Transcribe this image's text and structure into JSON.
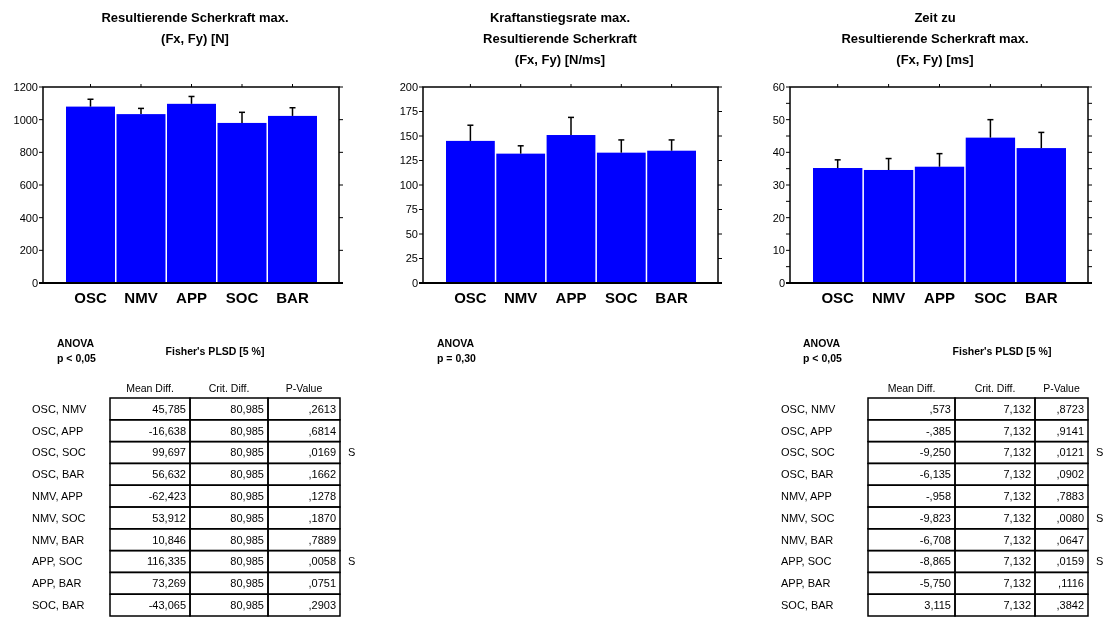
{
  "chart_data": [
    {
      "type": "bar",
      "title": "Resultierende Scherkraft max.\n(Fx, Fy) [N]",
      "categories": [
        "OSC",
        "NMV",
        "APP",
        "SOC",
        "BAR"
      ],
      "values": [
        1080,
        1034,
        1097,
        980,
        1023
      ],
      "errors": [
        45,
        35,
        45,
        65,
        50
      ],
      "color": "#0000ff",
      "ylim": [
        0,
        1200
      ],
      "yticks": [
        0,
        200,
        400,
        600,
        800,
        1000,
        1200
      ]
    },
    {
      "type": "bar",
      "title": "Kraftanstiegsrate max.\nResultierende Scherkraft\n(Fx, Fy) [N/ms]",
      "categories": [
        "OSC",
        "NMV",
        "APP",
        "SOC",
        "BAR"
      ],
      "values": [
        145,
        132,
        151,
        133,
        135
      ],
      "errors": [
        16,
        8,
        18,
        13,
        11
      ],
      "color": "#0000ff",
      "ylim": [
        0,
        200
      ],
      "yticks": [
        0,
        25,
        50,
        75,
        100,
        125,
        150,
        175,
        200
      ],
      "annotations": [
        "ANOVA",
        "p = 0,30"
      ]
    },
    {
      "type": "bar",
      "title": "Zeit zu\nResultierende Scherkraft max.\n(Fx, Fy) [ms]",
      "categories": [
        "OSC",
        "NMV",
        "APP",
        "SOC",
        "BAR"
      ],
      "values": [
        35.2,
        34.6,
        35.6,
        44.5,
        41.3
      ],
      "errors": [
        2.5,
        3.5,
        4,
        5.5,
        4.8
      ],
      "color": "#0000ff",
      "ylim": [
        0,
        60
      ],
      "yticks": [
        0,
        {
          "value": 5,
          "label": null
        },
        10,
        {
          "value": 15,
          "label": null
        },
        20,
        {
          "value": 25,
          "label": null
        },
        30,
        {
          "value": 35,
          "label": null
        },
        40,
        {
          "value": 45,
          "label": null
        },
        50,
        {
          "value": 55,
          "label": null
        },
        60
      ]
    },
    {
      "type": "other",
      "title": "Fisher's PLSD [5 %]",
      "categories": [
        "Mean Diff.",
        "Crit. Diff.",
        "P-Value"
      ],
      "y_categories": [
        "OSC, NMV",
        "OSC, APP",
        "OSC, SOC",
        "OSC, BAR",
        "NMV, APP",
        "NMV, SOC",
        "NMV, BAR",
        "APP, SOC",
        "APP, BAR",
        "SOC, BAR"
      ],
      "annotations": [
        "ANOVA",
        "p < 0,05",
        {
          "text": "45,785",
          "x": "Mean Diff.",
          "y": "OSC, NMV"
        },
        {
          "text": "80,985",
          "x": "Crit. Diff.",
          "y": "OSC, NMV"
        },
        {
          "text": ",2613",
          "x": "P-Value",
          "y": "OSC, NMV"
        },
        {
          "text": "-16,638",
          "x": "Mean Diff.",
          "y": "OSC, APP"
        },
        {
          "text": "80,985",
          "x": "Crit. Diff.",
          "y": "OSC, APP"
        },
        {
          "text": ",6814",
          "x": "P-Value",
          "y": "OSC, APP"
        },
        {
          "text": "99,697",
          "x": "Mean Diff.",
          "y": "OSC, SOC"
        },
        {
          "text": "80,985",
          "x": "Crit. Diff.",
          "y": "OSC, SOC"
        },
        {
          "text": ",0169",
          "x": "P-Value",
          "y": "OSC, SOC"
        },
        {
          "text": "S",
          "y": "OSC, SOC"
        },
        {
          "text": "56,632",
          "x": "Mean Diff.",
          "y": "OSC, BAR"
        },
        {
          "text": "80,985",
          "x": "Crit. Diff.",
          "y": "OSC, BAR"
        },
        {
          "text": ",1662",
          "x": "P-Value",
          "y": "OSC, BAR"
        },
        {
          "text": "-62,423",
          "x": "Mean Diff.",
          "y": "NMV, APP"
        },
        {
          "text": "80,985",
          "x": "Crit. Diff.",
          "y": "NMV, APP"
        },
        {
          "text": ",1278",
          "x": "P-Value",
          "y": "NMV, APP"
        },
        {
          "text": "53,912",
          "x": "Mean Diff.",
          "y": "NMV, SOC"
        },
        {
          "text": "80,985",
          "x": "Crit. Diff.",
          "y": "NMV, SOC"
        },
        {
          "text": ",1870",
          "x": "P-Value",
          "y": "NMV, SOC"
        },
        {
          "text": "10,846",
          "x": "Mean Diff.",
          "y": "NMV, BAR"
        },
        {
          "text": "80,985",
          "x": "Crit. Diff.",
          "y": "NMV, BAR"
        },
        {
          "text": ",7889",
          "x": "P-Value",
          "y": "NMV, BAR"
        },
        {
          "text": "116,335",
          "x": "Mean Diff.",
          "y": "APP, SOC"
        },
        {
          "text": "80,985",
          "x": "Crit. Diff.",
          "y": "APP, SOC"
        },
        {
          "text": ",0058",
          "x": "P-Value",
          "y": "APP, SOC"
        },
        {
          "text": "S",
          "y": "APP, SOC"
        },
        {
          "text": "73,269",
          "x": "Mean Diff.",
          "y": "APP, BAR"
        },
        {
          "text": "80,985",
          "x": "Crit. Diff.",
          "y": "APP, BAR"
        },
        {
          "text": ",0751",
          "x": "P-Value",
          "y": "APP, BAR"
        },
        {
          "text": "-43,065",
          "x": "Mean Diff.",
          "y": "SOC, BAR"
        },
        {
          "text": "80,985",
          "x": "Crit. Diff.",
          "y": "SOC, BAR"
        },
        {
          "text": ",2903",
          "x": "P-Value",
          "y": "SOC, BAR"
        }
      ]
    },
    {
      "type": "other",
      "title": "Fisher's PLSD [5 %]",
      "categories": [
        "Mean Diff.",
        "Crit. Diff.",
        "P-Value"
      ],
      "y_categories": [
        "OSC, NMV",
        "OSC, APP",
        "OSC, SOC",
        "OSC, BAR",
        "NMV, APP",
        "NMV, SOC",
        "NMV, BAR",
        "APP, SOC",
        "APP, BAR",
        "SOC, BAR"
      ],
      "annotations": [
        "ANOVA",
        "p < 0,05",
        {
          "text": ",573",
          "x": "Mean Diff.",
          "y": "OSC, NMV"
        },
        {
          "text": "7,132",
          "x": "Crit. Diff.",
          "y": "OSC, NMV"
        },
        {
          "text": ",8723",
          "x": "P-Value",
          "y": "OSC, NMV"
        },
        {
          "text": "-,385",
          "x": "Mean Diff.",
          "y": "OSC, APP"
        },
        {
          "text": "7,132",
          "x": "Crit. Diff.",
          "y": "OSC, APP"
        },
        {
          "text": ",9141",
          "x": "P-Value",
          "y": "OSC, APP"
        },
        {
          "text": "-9,250",
          "x": "Mean Diff.",
          "y": "OSC, SOC"
        },
        {
          "text": "7,132",
          "x": "Crit. Diff.",
          "y": "OSC, SOC"
        },
        {
          "text": ",0121",
          "x": "P-Value",
          "y": "OSC, SOC"
        },
        {
          "text": "S",
          "y": "OSC, SOC"
        },
        {
          "text": "-6,135",
          "x": "Mean Diff.",
          "y": "OSC, BAR"
        },
        {
          "text": "7,132",
          "x": "Crit. Diff.",
          "y": "OSC, BAR"
        },
        {
          "text": ",0902",
          "x": "P-Value",
          "y": "OSC, BAR"
        },
        {
          "text": "-,958",
          "x": "Mean Diff.",
          "y": "NMV, APP"
        },
        {
          "text": "7,132",
          "x": "Crit. Diff.",
          "y": "NMV, APP"
        },
        {
          "text": ",7883",
          "x": "P-Value",
          "y": "NMV, APP"
        },
        {
          "text": "-9,823",
          "x": "Mean Diff.",
          "y": "NMV, SOC"
        },
        {
          "text": "7,132",
          "x": "Crit. Diff.",
          "y": "NMV, SOC"
        },
        {
          "text": ",0080",
          "x": "P-Value",
          "y": "NMV, SOC"
        },
        {
          "text": "S",
          "y": "NMV, SOC"
        },
        {
          "text": "-6,708",
          "x": "Mean Diff.",
          "y": "NMV, BAR"
        },
        {
          "text": "7,132",
          "x": "Crit. Diff.",
          "y": "NMV, BAR"
        },
        {
          "text": ",0647",
          "x": "P-Value",
          "y": "NMV, BAR"
        },
        {
          "text": "-8,865",
          "x": "Mean Diff.",
          "y": "APP, SOC"
        },
        {
          "text": "7,132",
          "x": "Crit. Diff.",
          "y": "APP, SOC"
        },
        {
          "text": ",0159",
          "x": "P-Value",
          "y": "APP, SOC"
        },
        {
          "text": "S",
          "y": "APP, SOC"
        },
        {
          "text": "-5,750",
          "x": "Mean Diff.",
          "y": "APP, BAR"
        },
        {
          "text": "7,132",
          "x": "Crit. Diff.",
          "y": "APP, BAR"
        },
        {
          "text": ",1116",
          "x": "P-Value",
          "y": "APP, BAR"
        },
        {
          "text": "3,115",
          "x": "Mean Diff.",
          "y": "SOC, BAR"
        },
        {
          "text": "7,132",
          "x": "Crit. Diff.",
          "y": "SOC, BAR"
        },
        {
          "text": ",3842",
          "x": "P-Value",
          "y": "SOC, BAR"
        }
      ]
    }
  ]
}
